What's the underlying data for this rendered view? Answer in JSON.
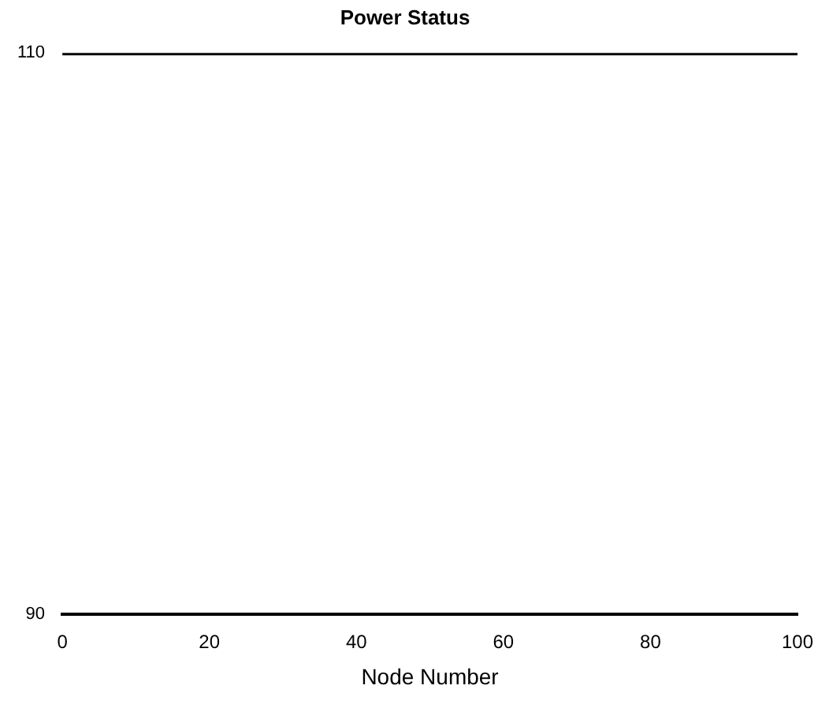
{
  "chart_data": {
    "type": "line",
    "title": "Power Status",
    "xlabel": "Node Number",
    "x": [
      0,
      100
    ],
    "series": [
      {
        "color": "#000000",
        "values": [
          110,
          110
        ]
      }
    ],
    "xlim": [
      0,
      100
    ],
    "xticks": [
      0,
      20,
      40,
      60,
      80,
      100
    ],
    "ylim": [
      90,
      110
    ],
    "yticks": [
      90,
      110
    ],
    "grid": false,
    "legend": false,
    "marker": "none",
    "line_style": "solid"
  }
}
